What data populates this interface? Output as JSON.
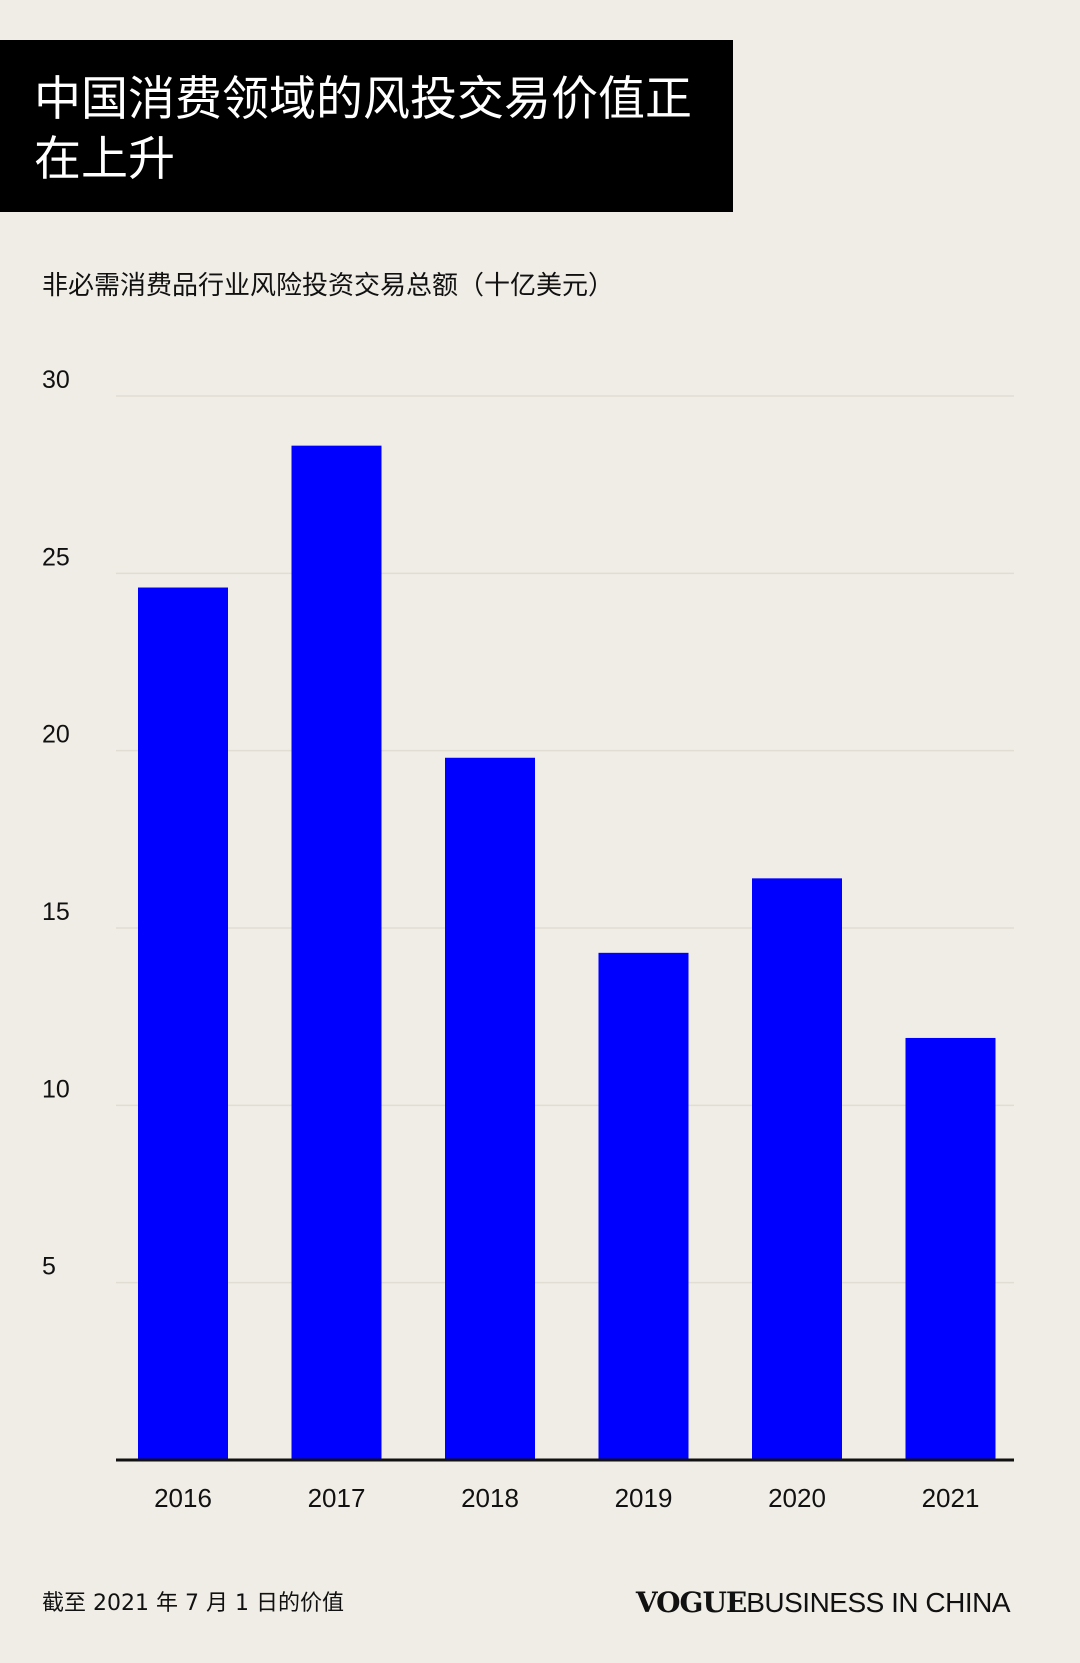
{
  "header": {
    "title": "中国消费领域的风投交易价值正在上升"
  },
  "chart_data": {
    "type": "bar",
    "title": "中国消费领域的风投交易价值正在上升",
    "subtitle": "非必需消费品行业风险投资交易总额（十亿美元）",
    "xlabel": "",
    "ylabel": "",
    "categories": [
      "2016",
      "2017",
      "2018",
      "2019",
      "2020",
      "2021"
    ],
    "values": [
      24.6,
      28.6,
      19.8,
      14.3,
      16.4,
      11.9
    ],
    "ylim": [
      0,
      30
    ],
    "yticks": [
      5,
      10,
      15,
      20,
      25,
      30
    ],
    "ytick_labels": [
      "5",
      "10",
      "15",
      "20",
      "25",
      "30"
    ],
    "grid": true,
    "bar_color": "#0000FF",
    "grid_color": "#E2DDD3",
    "axis_color": "#111111"
  },
  "footer": {
    "note": "截至 2021 年 7 月 1 日的价值",
    "brand_vogue": "VOGUE",
    "brand_rest": "BUSINESS IN CHINA"
  },
  "colors": {
    "background": "#F0EDE6",
    "title_bg": "#000000",
    "title_text": "#FFFFFF"
  }
}
